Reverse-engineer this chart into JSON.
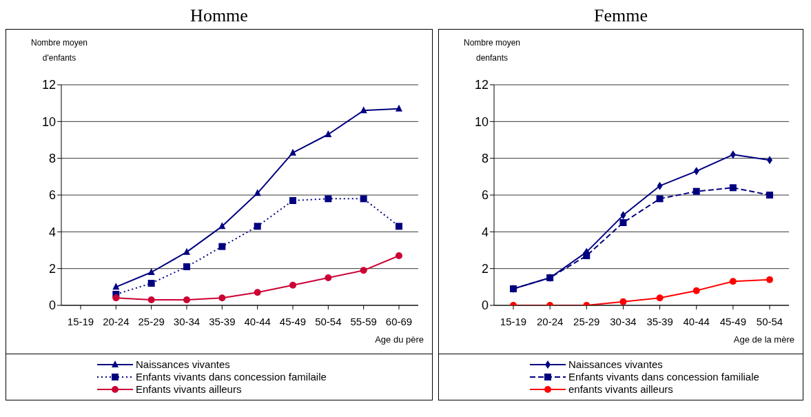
{
  "chart_data": [
    {
      "type": "line",
      "title": "Homme",
      "ylabel": "Nombre moyen d'enfants",
      "xlabel": "Age du père",
      "categories": [
        "15-19",
        "20-24",
        "25-29",
        "30-34",
        "35-39",
        "40-44",
        "45-49",
        "50-54",
        "55-59",
        "60-69"
      ],
      "ylim": [
        0,
        12
      ],
      "yticks": [
        0,
        2,
        4,
        6,
        8,
        10,
        12
      ],
      "grid": "y",
      "legend": "bottom",
      "series": [
        {
          "name": "Naissances vivantes",
          "color": "#000080",
          "marker": "triangle",
          "line_style": "solid",
          "values": [
            null,
            1.0,
            1.8,
            2.9,
            4.3,
            6.1,
            8.3,
            9.3,
            10.6,
            10.7
          ]
        },
        {
          "name": "Enfants vivants dans concession familaile",
          "color": "#000080",
          "marker": "square",
          "line_style": "dotted",
          "values": [
            null,
            0.6,
            1.2,
            2.1,
            3.2,
            4.3,
            5.7,
            5.8,
            5.8,
            4.3
          ]
        },
        {
          "name": "Enfants vivants ailleurs",
          "color": "#cc0033",
          "marker": "circle",
          "line_style": "solid",
          "values": [
            null,
            0.4,
            0.3,
            0.3,
            0.4,
            0.7,
            1.1,
            1.5,
            1.9,
            2.7
          ]
        }
      ]
    },
    {
      "type": "line",
      "title": "Femme",
      "ylabel": "Nombre moyen denfants",
      "xlabel": "Age de la mère",
      "categories": [
        "15-19",
        "20-24",
        "25-29",
        "30-34",
        "35-39",
        "40-44",
        "45-49",
        "50-54"
      ],
      "ylim": [
        0,
        12
      ],
      "yticks": [
        0,
        2,
        4,
        6,
        8,
        10,
        12
      ],
      "grid": "y",
      "legend": "bottom",
      "series": [
        {
          "name": "Naissances vivantes",
          "color": "#000080",
          "marker": "diamond",
          "line_style": "solid",
          "values": [
            0.9,
            1.5,
            2.9,
            4.9,
            6.5,
            7.3,
            8.2,
            7.9
          ]
        },
        {
          "name": "Enfants vivants dans concession familiale",
          "color": "#000080",
          "marker": "square",
          "line_style": "dashed",
          "values": [
            0.9,
            1.5,
            2.7,
            4.5,
            5.8,
            6.2,
            6.4,
            6.0
          ]
        },
        {
          "name": "enfants vivants ailleurs",
          "color": "#ff0000",
          "marker": "circle",
          "line_style": "solid",
          "values": [
            0,
            0,
            0,
            0.2,
            0.4,
            0.8,
            1.3,
            1.4
          ]
        }
      ]
    }
  ]
}
